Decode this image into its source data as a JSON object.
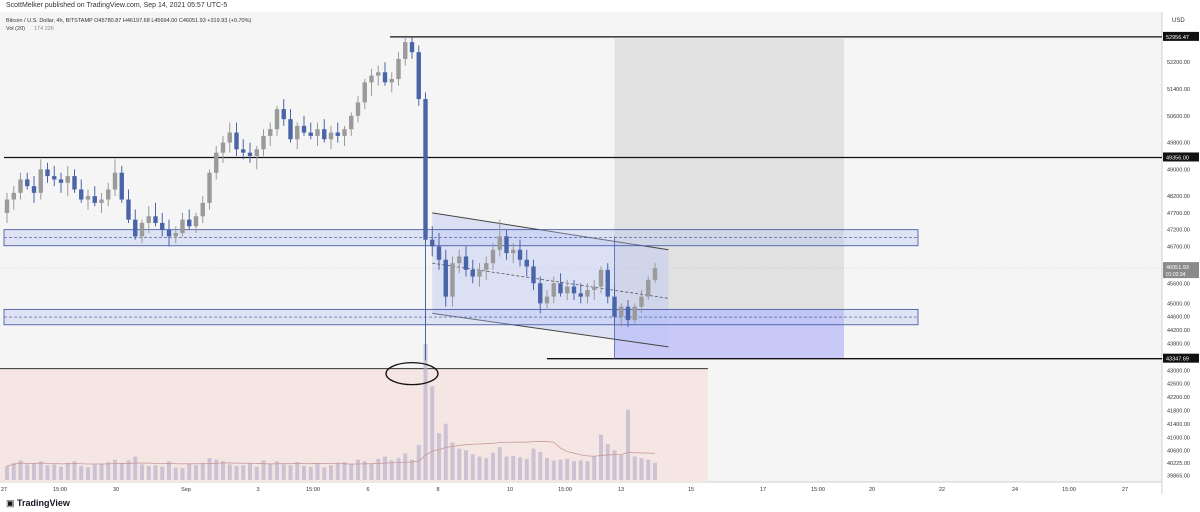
{
  "header": {
    "published": "ScottMelker published on TradingView.com, Sep 14, 2021 05:57 UTC-5"
  },
  "footer": {
    "brand": "TradingView"
  },
  "chart_data": {
    "type": "candlestick",
    "symbol_line": "Bitcoin / U.S. Dollar, 4h, BITSTAMP",
    "ohlc_line": "O45780.87 H46197.68 L45694.00 C46051.93 +319.93 (+0.70%)",
    "vol_line": "Vol (20)",
    "vol_values": "174  226",
    "currency": "USD",
    "price_range": [
      39665,
      53700
    ],
    "y_ticks": [
      52200,
      51400,
      50600,
      49800,
      49000,
      48200,
      47700,
      47200,
      46700,
      45600,
      45000,
      44600,
      44200,
      43800,
      43000,
      42600,
      42200,
      41800,
      41400,
      41000,
      40600,
      40225,
      39865
    ],
    "y_tick_labels": [
      "52200.00",
      "51400.00",
      "50600.00",
      "49800.00",
      "49000.00",
      "48200.00",
      "47700.00",
      "47200.00",
      "46700.00",
      "45600.00",
      "45000.00",
      "44600.00",
      "44200.00",
      "43800.00",
      "43000.00",
      "42600.00",
      "42200.00",
      "41800.00",
      "41400.00",
      "41000.00",
      "40600.00",
      "40225.00",
      "39865.00"
    ],
    "price_badges": [
      {
        "label": "52956.47",
        "value": 52956.47
      },
      {
        "label": "49356.00",
        "value": 49356.0
      },
      {
        "label": "43347.69",
        "value": 43347.69
      }
    ],
    "last_price": {
      "label": "46051.93",
      "countdown": "01:02:34",
      "value": 46051.93
    },
    "x_tick_labels": [
      "27",
      "15:00",
      "30",
      "Sep",
      "3",
      "15:00",
      "6",
      "8",
      "10",
      "15:00",
      "13",
      "15",
      "17",
      "15:00",
      "20",
      "22",
      "24",
      "15:00",
      "27"
    ],
    "x_tick_positions": [
      4,
      60,
      116,
      186,
      258,
      313,
      368,
      438,
      510,
      565,
      621,
      691,
      763,
      818,
      872,
      942,
      1015,
      1069,
      1125
    ],
    "horizontal_levels": [
      52956.47,
      49356.0,
      43347.69
    ],
    "zones": [
      {
        "top": 47200,
        "bottom": 46720
      },
      {
        "top": 44820,
        "bottom": 44360
      }
    ],
    "candles": [
      {
        "t": 0,
        "o": 47700,
        "h": 48300,
        "l": 47400,
        "c": 48100
      },
      {
        "t": 1,
        "o": 48100,
        "h": 48500,
        "l": 47800,
        "c": 48300
      },
      {
        "t": 2,
        "o": 48300,
        "h": 48900,
        "l": 48100,
        "c": 48700
      },
      {
        "t": 3,
        "o": 48700,
        "h": 48900,
        "l": 48400,
        "c": 48500
      },
      {
        "t": 4,
        "o": 48500,
        "h": 48800,
        "l": 48000,
        "c": 48300
      },
      {
        "t": 5,
        "o": 48300,
        "h": 49300,
        "l": 48100,
        "c": 49000
      },
      {
        "t": 6,
        "o": 49000,
        "h": 49200,
        "l": 48600,
        "c": 48800
      },
      {
        "t": 7,
        "o": 48800,
        "h": 49100,
        "l": 48500,
        "c": 48700
      },
      {
        "t": 8,
        "o": 48700,
        "h": 48900,
        "l": 48300,
        "c": 48600
      },
      {
        "t": 9,
        "o": 48600,
        "h": 49100,
        "l": 48200,
        "c": 48800
      },
      {
        "t": 10,
        "o": 48800,
        "h": 49000,
        "l": 48300,
        "c": 48400
      },
      {
        "t": 11,
        "o": 48400,
        "h": 48700,
        "l": 48000,
        "c": 48100
      },
      {
        "t": 12,
        "o": 48100,
        "h": 48400,
        "l": 47800,
        "c": 48200
      },
      {
        "t": 13,
        "o": 48200,
        "h": 48500,
        "l": 47900,
        "c": 48000
      },
      {
        "t": 14,
        "o": 48000,
        "h": 48300,
        "l": 47700,
        "c": 48100
      },
      {
        "t": 15,
        "o": 48100,
        "h": 48600,
        "l": 47900,
        "c": 48400
      },
      {
        "t": 16,
        "o": 48400,
        "h": 49300,
        "l": 48200,
        "c": 48900
      },
      {
        "t": 17,
        "o": 48900,
        "h": 49100,
        "l": 48000,
        "c": 48100
      },
      {
        "t": 18,
        "o": 48100,
        "h": 48400,
        "l": 47400,
        "c": 47500
      },
      {
        "t": 19,
        "o": 47500,
        "h": 47800,
        "l": 46900,
        "c": 47000
      },
      {
        "t": 20,
        "o": 47000,
        "h": 47500,
        "l": 46800,
        "c": 47400
      },
      {
        "t": 21,
        "o": 47400,
        "h": 47900,
        "l": 47100,
        "c": 47600
      },
      {
        "t": 22,
        "o": 47600,
        "h": 48000,
        "l": 47300,
        "c": 47400
      },
      {
        "t": 23,
        "o": 47400,
        "h": 47700,
        "l": 47000,
        "c": 47200
      },
      {
        "t": 24,
        "o": 47200,
        "h": 47500,
        "l": 46700,
        "c": 47000
      },
      {
        "t": 25,
        "o": 47000,
        "h": 47300,
        "l": 46800,
        "c": 47100
      },
      {
        "t": 26,
        "o": 47100,
        "h": 47700,
        "l": 47000,
        "c": 47500
      },
      {
        "t": 27,
        "o": 47500,
        "h": 47800,
        "l": 47200,
        "c": 47300
      },
      {
        "t": 28,
        "o": 47300,
        "h": 47700,
        "l": 47100,
        "c": 47600
      },
      {
        "t": 29,
        "o": 47600,
        "h": 48200,
        "l": 47400,
        "c": 48000
      },
      {
        "t": 30,
        "o": 48000,
        "h": 49000,
        "l": 47800,
        "c": 48900
      },
      {
        "t": 31,
        "o": 48900,
        "h": 49700,
        "l": 48700,
        "c": 49500
      },
      {
        "t": 32,
        "o": 49500,
        "h": 50000,
        "l": 49200,
        "c": 49800
      },
      {
        "t": 33,
        "o": 49800,
        "h": 50400,
        "l": 49500,
        "c": 50100
      },
      {
        "t": 34,
        "o": 50100,
        "h": 50400,
        "l": 49400,
        "c": 49600
      },
      {
        "t": 35,
        "o": 49600,
        "h": 49900,
        "l": 49300,
        "c": 49500
      },
      {
        "t": 36,
        "o": 49500,
        "h": 49800,
        "l": 49200,
        "c": 49400
      },
      {
        "t": 37,
        "o": 49400,
        "h": 49700,
        "l": 49000,
        "c": 49600
      },
      {
        "t": 38,
        "o": 49600,
        "h": 50200,
        "l": 49400,
        "c": 50000
      },
      {
        "t": 39,
        "o": 50000,
        "h": 50400,
        "l": 49700,
        "c": 50200
      },
      {
        "t": 40,
        "o": 50200,
        "h": 50900,
        "l": 50000,
        "c": 50800
      },
      {
        "t": 41,
        "o": 50800,
        "h": 51100,
        "l": 50300,
        "c": 50500
      },
      {
        "t": 42,
        "o": 50500,
        "h": 50800,
        "l": 49800,
        "c": 49900
      },
      {
        "t": 43,
        "o": 49900,
        "h": 50400,
        "l": 49600,
        "c": 50300
      },
      {
        "t": 44,
        "o": 50300,
        "h": 50600,
        "l": 50000,
        "c": 50100
      },
      {
        "t": 45,
        "o": 50100,
        "h": 50400,
        "l": 49900,
        "c": 50000
      },
      {
        "t": 46,
        "o": 50000,
        "h": 50400,
        "l": 49700,
        "c": 50200
      },
      {
        "t": 47,
        "o": 50200,
        "h": 50500,
        "l": 49800,
        "c": 49900
      },
      {
        "t": 48,
        "o": 49900,
        "h": 50300,
        "l": 49600,
        "c": 50100
      },
      {
        "t": 49,
        "o": 50100,
        "h": 50400,
        "l": 49800,
        "c": 50000
      },
      {
        "t": 50,
        "o": 50000,
        "h": 50300,
        "l": 49700,
        "c": 50200
      },
      {
        "t": 51,
        "o": 50200,
        "h": 50700,
        "l": 50000,
        "c": 50600
      },
      {
        "t": 52,
        "o": 50600,
        "h": 51200,
        "l": 50400,
        "c": 51000
      },
      {
        "t": 53,
        "o": 51000,
        "h": 51700,
        "l": 50800,
        "c": 51600
      },
      {
        "t": 54,
        "o": 51600,
        "h": 52000,
        "l": 51200,
        "c": 51800
      },
      {
        "t": 55,
        "o": 51800,
        "h": 52100,
        "l": 51500,
        "c": 51900
      },
      {
        "t": 56,
        "o": 51900,
        "h": 52200,
        "l": 51500,
        "c": 51600
      },
      {
        "t": 57,
        "o": 51600,
        "h": 51900,
        "l": 51300,
        "c": 51700
      },
      {
        "t": 58,
        "o": 51700,
        "h": 52500,
        "l": 51500,
        "c": 52300
      },
      {
        "t": 59,
        "o": 52300,
        "h": 52950,
        "l": 52100,
        "c": 52800
      },
      {
        "t": 60,
        "o": 52800,
        "h": 52950,
        "l": 52300,
        "c": 52500
      },
      {
        "t": 61,
        "o": 52500,
        "h": 52700,
        "l": 50900,
        "c": 51100
      },
      {
        "t": 62,
        "o": 51100,
        "h": 51300,
        "l": 43300,
        "c": 46900
      },
      {
        "t": 63,
        "o": 46900,
        "h": 47300,
        "l": 46400,
        "c": 46700
      },
      {
        "t": 64,
        "o": 46700,
        "h": 47100,
        "l": 46000,
        "c": 46300
      },
      {
        "t": 65,
        "o": 46300,
        "h": 46600,
        "l": 44900,
        "c": 45200
      },
      {
        "t": 66,
        "o": 45200,
        "h": 46400,
        "l": 44900,
        "c": 46200
      },
      {
        "t": 67,
        "o": 46200,
        "h": 46600,
        "l": 45900,
        "c": 46400
      },
      {
        "t": 68,
        "o": 46400,
        "h": 46700,
        "l": 45800,
        "c": 46000
      },
      {
        "t": 69,
        "o": 46000,
        "h": 46300,
        "l": 45600,
        "c": 45800
      },
      {
        "t": 70,
        "o": 45800,
        "h": 46200,
        "l": 45500,
        "c": 46000
      },
      {
        "t": 71,
        "o": 46000,
        "h": 46400,
        "l": 45700,
        "c": 46200
      },
      {
        "t": 72,
        "o": 46200,
        "h": 46800,
        "l": 46000,
        "c": 46600
      },
      {
        "t": 73,
        "o": 46600,
        "h": 47500,
        "l": 46400,
        "c": 47000
      },
      {
        "t": 74,
        "o": 47000,
        "h": 47200,
        "l": 46300,
        "c": 46500
      },
      {
        "t": 75,
        "o": 46500,
        "h": 46800,
        "l": 46200,
        "c": 46600
      },
      {
        "t": 76,
        "o": 46600,
        "h": 46900,
        "l": 46100,
        "c": 46300
      },
      {
        "t": 77,
        "o": 46300,
        "h": 46600,
        "l": 45800,
        "c": 46100
      },
      {
        "t": 78,
        "o": 46100,
        "h": 46300,
        "l": 45400,
        "c": 45600
      },
      {
        "t": 79,
        "o": 45600,
        "h": 45800,
        "l": 44700,
        "c": 45000
      },
      {
        "t": 80,
        "o": 45000,
        "h": 45400,
        "l": 44800,
        "c": 45200
      },
      {
        "t": 81,
        "o": 45200,
        "h": 45800,
        "l": 45000,
        "c": 45600
      },
      {
        "t": 82,
        "o": 45600,
        "h": 45900,
        "l": 45200,
        "c": 45300
      },
      {
        "t": 83,
        "o": 45300,
        "h": 45700,
        "l": 45100,
        "c": 45500
      },
      {
        "t": 84,
        "o": 45500,
        "h": 45700,
        "l": 45100,
        "c": 45300
      },
      {
        "t": 85,
        "o": 45300,
        "h": 45600,
        "l": 45000,
        "c": 45200
      },
      {
        "t": 86,
        "o": 45200,
        "h": 45600,
        "l": 45000,
        "c": 45400
      },
      {
        "t": 87,
        "o": 45400,
        "h": 45700,
        "l": 45100,
        "c": 45500
      },
      {
        "t": 88,
        "o": 45500,
        "h": 46100,
        "l": 45300,
        "c": 46000
      },
      {
        "t": 89,
        "o": 46000,
        "h": 46200,
        "l": 45000,
        "c": 45200
      },
      {
        "t": 90,
        "o": 45200,
        "h": 45500,
        "l": 44400,
        "c": 44600
      },
      {
        "t": 91,
        "o": 44600,
        "h": 45000,
        "l": 44300,
        "c": 44900
      },
      {
        "t": 92,
        "o": 44900,
        "h": 45100,
        "l": 44300,
        "c": 44500
      },
      {
        "t": 93,
        "o": 44500,
        "h": 45000,
        "l": 44400,
        "c": 44900
      },
      {
        "t": 94,
        "o": 44900,
        "h": 45400,
        "l": 44700,
        "c": 45200
      },
      {
        "t": 95,
        "o": 45200,
        "h": 45800,
        "l": 45100,
        "c": 45700
      },
      {
        "t": 96,
        "o": 45700,
        "h": 46200,
        "l": 45600,
        "c": 46050
      }
    ],
    "volumes": [
      18,
      22,
      25,
      20,
      21,
      24,
      19,
      20,
      17,
      22,
      24,
      18,
      16,
      20,
      21,
      23,
      26,
      22,
      25,
      30,
      20,
      18,
      19,
      17,
      24,
      16,
      15,
      21,
      19,
      22,
      28,
      26,
      24,
      20,
      18,
      19,
      22,
      17,
      25,
      21,
      24,
      20,
      19,
      23,
      18,
      17,
      21,
      16,
      19,
      22,
      23,
      20,
      26,
      24,
      21,
      27,
      30,
      25,
      28,
      34,
      26,
      45,
      174,
      120,
      60,
      72,
      48,
      40,
      38,
      33,
      30,
      28,
      35,
      42,
      30,
      31,
      29,
      27,
      40,
      36,
      28,
      25,
      26,
      27,
      24,
      25,
      24,
      30,
      58,
      46,
      38,
      32,
      90,
      30,
      28,
      26,
      22
    ],
    "channel": {
      "upper": [
        [
          63,
          47700
        ],
        [
          98,
          46600
        ]
      ],
      "lower": [
        [
          63,
          44700
        ],
        [
          98,
          43700
        ]
      ],
      "mid": [
        [
          63,
          46200
        ],
        [
          98,
          45150
        ]
      ]
    },
    "projection": {
      "from_t": 90,
      "to_t": 124,
      "top": 52900,
      "mid": 44800,
      "bottom": 43347.69
    }
  }
}
